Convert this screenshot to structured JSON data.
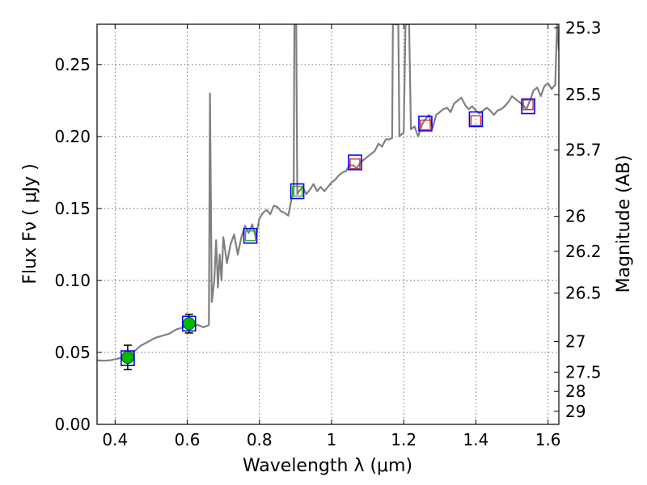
{
  "chart_data": {
    "type": "scatter",
    "title": "",
    "xlabel": "Wavelength  λ (μm)",
    "ylabel": "Flux  Fν  ( μJy )",
    "y2label": "Magnitude (AB)",
    "xlim": [
      0.35,
      1.63
    ],
    "ylim": [
      0.0,
      0.278
    ],
    "grid": true,
    "x_ticks": [
      {
        "value": 0.4,
        "label": "0.4"
      },
      {
        "value": 0.6,
        "label": "0.6"
      },
      {
        "value": 0.8,
        "label": "0.8"
      },
      {
        "value": 1.0,
        "label": "1"
      },
      {
        "value": 1.2,
        "label": "1.2"
      },
      {
        "value": 1.4,
        "label": "1.4"
      },
      {
        "value": 1.6,
        "label": "1.6"
      }
    ],
    "y_ticks": [
      {
        "value": 0.0,
        "label": "0.00"
      },
      {
        "value": 0.05,
        "label": "0.05"
      },
      {
        "value": 0.1,
        "label": "0.10"
      },
      {
        "value": 0.15,
        "label": "0.15"
      },
      {
        "value": 0.2,
        "label": "0.20"
      },
      {
        "value": 0.25,
        "label": "0.25"
      }
    ],
    "mag_ticks": [
      {
        "value": 25.3,
        "label": "25.3"
      },
      {
        "value": 25.5,
        "label": "25.5"
      },
      {
        "value": 25.7,
        "label": "25.7"
      },
      {
        "value": 26.0,
        "label": "26"
      },
      {
        "value": 26.2,
        "label": "26.2"
      },
      {
        "value": 26.5,
        "label": "26.5"
      },
      {
        "value": 27.0,
        "label": "27"
      },
      {
        "value": 27.5,
        "label": "27.5"
      },
      {
        "value": 28.0,
        "label": "28"
      },
      {
        "value": 29.0,
        "label": "29"
      }
    ],
    "spectrum": {
      "color": "#808080",
      "points": [
        [
          0.35,
          0.0445
        ],
        [
          0.37,
          0.0442
        ],
        [
          0.39,
          0.0447
        ],
        [
          0.41,
          0.0458
        ],
        [
          0.43,
          0.047
        ],
        [
          0.45,
          0.05
        ],
        [
          0.47,
          0.0545
        ],
        [
          0.49,
          0.0572
        ],
        [
          0.51,
          0.06
        ],
        [
          0.53,
          0.0615
        ],
        [
          0.55,
          0.063
        ],
        [
          0.57,
          0.066
        ],
        [
          0.59,
          0.0675
        ],
        [
          0.61,
          0.0685
        ],
        [
          0.63,
          0.069
        ],
        [
          0.645,
          0.0675
        ],
        [
          0.66,
          0.069
        ],
        [
          0.663,
          0.23
        ],
        [
          0.668,
          0.085
        ],
        [
          0.675,
          0.1
        ],
        [
          0.68,
          0.128
        ],
        [
          0.685,
          0.095
        ],
        [
          0.69,
          0.118
        ],
        [
          0.695,
          0.1
        ],
        [
          0.7,
          0.13
        ],
        [
          0.71,
          0.112
        ],
        [
          0.72,
          0.125
        ],
        [
          0.73,
          0.132
        ],
        [
          0.74,
          0.118
        ],
        [
          0.75,
          0.13
        ],
        [
          0.76,
          0.138
        ],
        [
          0.77,
          0.133
        ],
        [
          0.78,
          0.139
        ],
        [
          0.79,
          0.13
        ],
        [
          0.8,
          0.143
        ],
        [
          0.81,
          0.147
        ],
        [
          0.82,
          0.149
        ],
        [
          0.83,
          0.146
        ],
        [
          0.84,
          0.152
        ],
        [
          0.85,
          0.151
        ],
        [
          0.86,
          0.148
        ],
        [
          0.87,
          0.147
        ],
        [
          0.88,
          0.145
        ],
        [
          0.89,
          0.158
        ],
        [
          0.895,
          0.16
        ],
        [
          0.897,
          0.278
        ],
        [
          0.902,
          0.278
        ],
        [
          0.905,
          0.16
        ],
        [
          0.91,
          0.162
        ],
        [
          0.92,
          0.165
        ],
        [
          0.93,
          0.16
        ],
        [
          0.94,
          0.163
        ],
        [
          0.95,
          0.167
        ],
        [
          0.96,
          0.162
        ],
        [
          0.97,
          0.165
        ],
        [
          0.98,
          0.162
        ],
        [
          0.99,
          0.165
        ],
        [
          1.0,
          0.168
        ],
        [
          1.01,
          0.17
        ],
        [
          1.02,
          0.173
        ],
        [
          1.03,
          0.175
        ],
        [
          1.04,
          0.176
        ],
        [
          1.05,
          0.18
        ],
        [
          1.06,
          0.18
        ],
        [
          1.07,
          0.178
        ],
        [
          1.08,
          0.182
        ],
        [
          1.09,
          0.184
        ],
        [
          1.1,
          0.186
        ],
        [
          1.11,
          0.188
        ],
        [
          1.12,
          0.19
        ],
        [
          1.13,
          0.195
        ],
        [
          1.14,
          0.193
        ],
        [
          1.15,
          0.198
        ],
        [
          1.16,
          0.198
        ],
        [
          1.168,
          0.199
        ],
        [
          1.17,
          0.278
        ],
        [
          1.185,
          0.278
        ],
        [
          1.188,
          0.2
        ],
        [
          1.2,
          0.203
        ],
        [
          1.205,
          0.278
        ],
        [
          1.215,
          0.278
        ],
        [
          1.22,
          0.205
        ],
        [
          1.23,
          0.207
        ],
        [
          1.24,
          0.2
        ],
        [
          1.25,
          0.208
        ],
        [
          1.26,
          0.212
        ],
        [
          1.27,
          0.215
        ],
        [
          1.28,
          0.206
        ],
        [
          1.29,
          0.215
        ],
        [
          1.3,
          0.217
        ],
        [
          1.31,
          0.219
        ],
        [
          1.32,
          0.22
        ],
        [
          1.33,
          0.217
        ],
        [
          1.34,
          0.223
        ],
        [
          1.35,
          0.225
        ],
        [
          1.36,
          0.227
        ],
        [
          1.37,
          0.222
        ],
        [
          1.38,
          0.219
        ],
        [
          1.39,
          0.221
        ],
        [
          1.4,
          0.218
        ],
        [
          1.41,
          0.216
        ],
        [
          1.42,
          0.218
        ],
        [
          1.43,
          0.22
        ],
        [
          1.44,
          0.218
        ],
        [
          1.45,
          0.215
        ],
        [
          1.46,
          0.218
        ],
        [
          1.47,
          0.219
        ],
        [
          1.48,
          0.221
        ],
        [
          1.49,
          0.224
        ],
        [
          1.5,
          0.228
        ],
        [
          1.51,
          0.226
        ],
        [
          1.52,
          0.224
        ],
        [
          1.53,
          0.222
        ],
        [
          1.54,
          0.219
        ],
        [
          1.55,
          0.225
        ],
        [
          1.56,
          0.232
        ],
        [
          1.57,
          0.234
        ],
        [
          1.58,
          0.228
        ],
        [
          1.59,
          0.235
        ],
        [
          1.6,
          0.237
        ],
        [
          1.61,
          0.233
        ],
        [
          1.62,
          0.236
        ],
        [
          1.625,
          0.278
        ],
        [
          1.63,
          0.26
        ]
      ]
    },
    "observed": {
      "color": "#00bb00",
      "points": [
        {
          "x": 0.435,
          "y": 0.0465,
          "err": 0.0085
        },
        {
          "x": 0.605,
          "y": 0.07,
          "err": 0.0065
        }
      ]
    },
    "model_boxes": {
      "color": "#0000ff",
      "points": [
        {
          "x": 0.435,
          "y": 0.046
        },
        {
          "x": 0.605,
          "y": 0.07
        },
        {
          "x": 0.775,
          "y": 0.131
        },
        {
          "x": 0.905,
          "y": 0.162
        },
        {
          "x": 1.065,
          "y": 0.182
        },
        {
          "x": 1.26,
          "y": 0.209
        },
        {
          "x": 1.4,
          "y": 0.212
        },
        {
          "x": 1.545,
          "y": 0.221
        }
      ]
    },
    "inner_boxes": {
      "points": [
        {
          "x": 0.775,
          "y": 0.131,
          "color": "#30aa30"
        },
        {
          "x": 0.905,
          "y": 0.162,
          "color": "#30aa30"
        },
        {
          "x": 1.065,
          "y": 0.181,
          "color": "#d03030"
        },
        {
          "x": 1.26,
          "y": 0.208,
          "color": "#d03030"
        },
        {
          "x": 1.4,
          "y": 0.211,
          "color": "#d03030"
        },
        {
          "x": 1.545,
          "y": 0.222,
          "color": "#d03030"
        }
      ]
    }
  }
}
